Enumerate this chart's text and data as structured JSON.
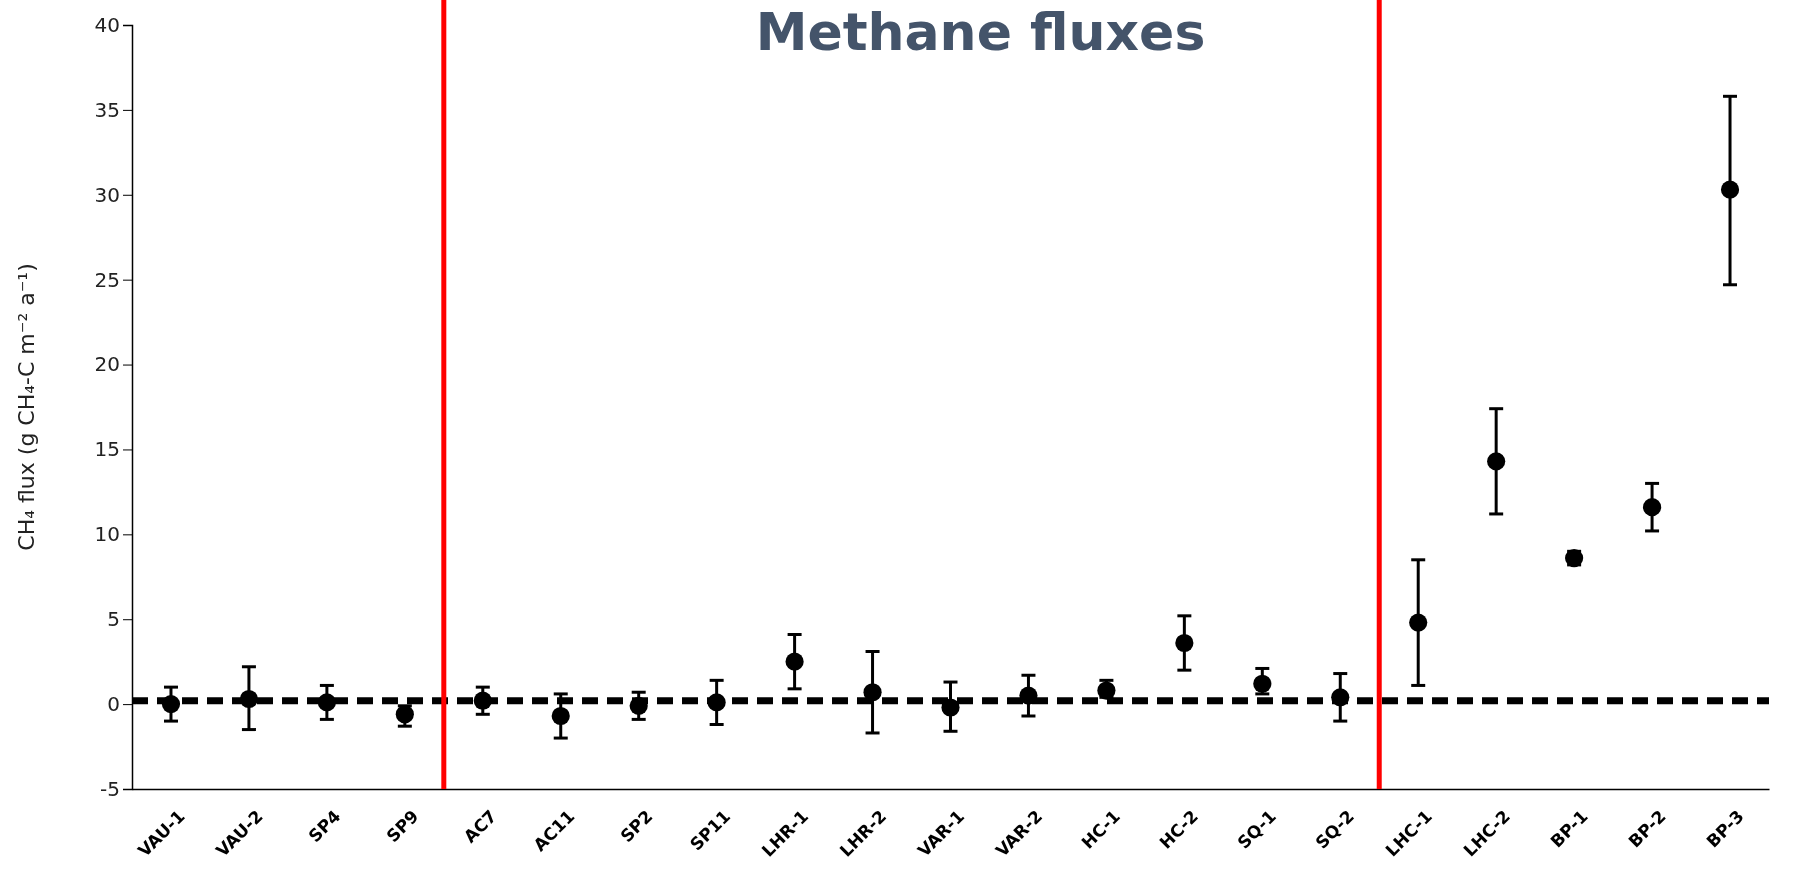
{
  "chart_data": {
    "type": "scatter",
    "title": "Methane  fluxes",
    "ylabel": "CH₄ flux (g CH₄-C m⁻²  a⁻¹)",
    "categories": [
      "VAU-1",
      "VAU-2",
      "SP4",
      "SP9",
      "AC7",
      "AC11",
      "SP2",
      "SP11",
      "LHR-1",
      "LHR-2",
      "VAR-1",
      "VAR-2",
      "HC-1",
      "HC-2",
      "SQ-1",
      "SQ-2",
      "LHC-1",
      "LHC-2",
      "BP-1",
      "BP-2",
      "BP-3"
    ],
    "series": [
      {
        "color": "#000000",
        "values": [
          0,
          0.3,
          0.1,
          -0.6,
          0.2,
          -0.7,
          -0.1,
          0.1,
          2.5,
          0.7,
          -0.2,
          0.5,
          0.8,
          3.6,
          1.2,
          0.4,
          4.8,
          14.3,
          8.6,
          11.6,
          30.3
        ],
        "errors": [
          [
            -1,
            1
          ],
          [
            -1.5,
            2.2
          ],
          [
            -0.9,
            1.1
          ],
          [
            -1.3,
            -0.1
          ],
          [
            -0.6,
            1
          ],
          [
            -2,
            0.6
          ],
          [
            -0.9,
            0.7
          ],
          [
            -1.2,
            1.4
          ],
          [
            0.9,
            4.1
          ],
          [
            -1.7,
            3.1
          ],
          [
            -1.6,
            1.3
          ],
          [
            -0.7,
            1.7
          ],
          [
            0.4,
            1.4
          ],
          [
            2,
            5.2
          ],
          [
            0.6,
            2.1
          ],
          [
            -1,
            1.8
          ],
          [
            1.1,
            8.5
          ],
          [
            11.2,
            17.4
          ],
          [
            8.2,
            9
          ],
          [
            10.2,
            13
          ],
          [
            24.7,
            35.8
          ]
        ]
      }
    ],
    "ylim": [
      -5,
      40
    ],
    "yticks": [
      -5,
      0,
      5,
      10,
      15,
      20,
      25,
      30,
      35,
      40
    ],
    "marker": "circle",
    "grid": false,
    "ref_lines": [
      {
        "axis": "y",
        "value": 0.2,
        "color": "#000000",
        "line_style": "dashed"
      }
    ]
  }
}
